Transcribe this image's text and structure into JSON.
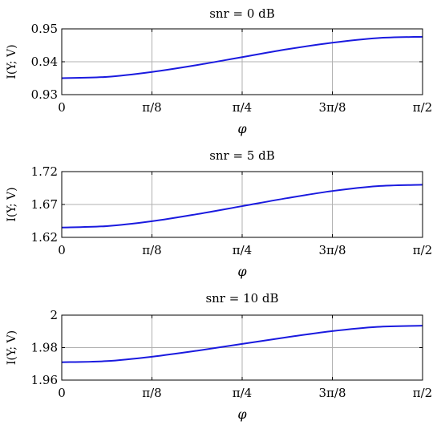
{
  "chart_data": [
    {
      "type": "line",
      "title": "snr = 0 dB",
      "xlabel": "φ",
      "ylabel": "I(Y; V)",
      "xlim": [
        0,
        1.5708
      ],
      "ylim": [
        0.93,
        0.95
      ],
      "x_ticks": [
        0,
        0.3927,
        0.7854,
        1.1781,
        1.5708
      ],
      "x_tick_labels": [
        "0",
        "π/8",
        "π/4",
        "3π/8",
        "π/2"
      ],
      "y_ticks": [
        0.93,
        0.94,
        0.95
      ],
      "y_tick_labels": [
        "0.93",
        "0.94",
        "0.95"
      ],
      "grid": true,
      "series": [
        {
          "color": "#1a1adf",
          "x": [
            0,
            0.1963,
            0.3927,
            0.589,
            0.7854,
            0.9817,
            1.1781,
            1.3744,
            1.5708
          ],
          "y": [
            0.935,
            0.9354,
            0.9369,
            0.939,
            0.9414,
            0.9438,
            0.9458,
            0.9472,
            0.9476
          ]
        }
      ]
    },
    {
      "type": "line",
      "title": "snr = 5 dB",
      "xlabel": "φ",
      "ylabel": "I(Y; V)",
      "xlim": [
        0,
        1.5708
      ],
      "ylim": [
        1.62,
        1.72
      ],
      "x_ticks": [
        0,
        0.3927,
        0.7854,
        1.1781,
        1.5708
      ],
      "x_tick_labels": [
        "0",
        "π/8",
        "π/4",
        "3π/8",
        "π/2"
      ],
      "y_ticks": [
        1.62,
        1.67,
        1.72
      ],
      "y_tick_labels": [
        "1.62",
        "1.67",
        "1.72"
      ],
      "grid": true,
      "series": [
        {
          "color": "#1a1adf",
          "x": [
            0,
            0.1963,
            0.3927,
            0.589,
            0.7854,
            0.9817,
            1.1781,
            1.3744,
            1.5708
          ],
          "y": [
            1.635,
            1.6371,
            1.6445,
            1.6553,
            1.6675,
            1.6797,
            1.6905,
            1.6979,
            1.7
          ]
        }
      ]
    },
    {
      "type": "line",
      "title": "snr = 10 dB",
      "xlabel": "φ",
      "ylabel": "I(Y; V)",
      "xlim": [
        0,
        1.5708
      ],
      "ylim": [
        1.96,
        2.0
      ],
      "x_ticks": [
        0,
        0.3927,
        0.7854,
        1.1781,
        1.5708
      ],
      "x_tick_labels": [
        "0",
        "π/8",
        "π/4",
        "3π/8",
        "π/2"
      ],
      "y_ticks": [
        1.96,
        1.98,
        2.0
      ],
      "y_tick_labels": [
        "1.96",
        "1.98",
        "2"
      ],
      "grid": true,
      "series": [
        {
          "color": "#1a1adf",
          "x": [
            0,
            0.1963,
            0.3927,
            0.589,
            0.7854,
            0.9817,
            1.1781,
            1.3744,
            1.5708
          ],
          "y": [
            1.971,
            1.9717,
            1.9744,
            1.9781,
            1.9823,
            1.9864,
            1.9902,
            1.9928,
            1.9935
          ]
        }
      ]
    }
  ]
}
